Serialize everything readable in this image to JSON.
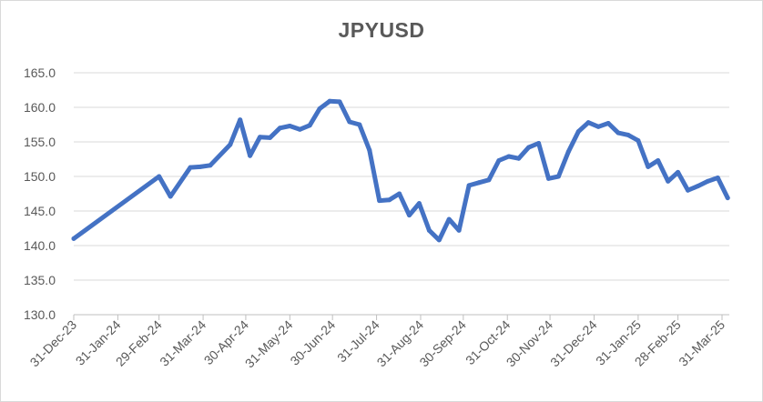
{
  "chart_data": {
    "type": "line",
    "title": "JPYUSD",
    "xlabel": "",
    "ylabel": "",
    "ylim": [
      130,
      165
    ],
    "y_ticks": [
      "165.0",
      "160.0",
      "155.0",
      "150.0",
      "145.0",
      "140.0",
      "135.0",
      "130.0"
    ],
    "x_ticks": [
      "31-Dec-23",
      "31-Jan-24",
      "29-Feb-24",
      "31-Mar-24",
      "30-Apr-24",
      "31-May-24",
      "30-Jun-24",
      "31-Jul-24",
      "31-Aug-24",
      "30-Sep-24",
      "31-Oct-24",
      "30-Nov-24",
      "31-Dec-24",
      "31-Jan-25",
      "28-Feb-25",
      "31-Mar-25"
    ],
    "grid": true,
    "legend": "none",
    "line_color": "#4472c4",
    "series": [
      {
        "x": [
          "2023-12-31",
          "2024-02-29",
          "2024-03-08",
          "2024-03-22",
          "2024-03-29",
          "2024-04-05",
          "2024-04-19",
          "2024-04-26",
          "2024-05-03",
          "2024-05-10",
          "2024-05-17",
          "2024-05-24",
          "2024-05-31",
          "2024-06-07",
          "2024-06-14",
          "2024-06-21",
          "2024-06-28",
          "2024-07-05",
          "2024-07-12",
          "2024-07-19",
          "2024-07-26",
          "2024-08-02",
          "2024-08-09",
          "2024-08-16",
          "2024-08-23",
          "2024-08-30",
          "2024-09-06",
          "2024-09-13",
          "2024-09-20",
          "2024-09-27",
          "2024-10-04",
          "2024-10-11",
          "2024-10-18",
          "2024-10-25",
          "2024-11-01",
          "2024-11-08",
          "2024-11-15",
          "2024-11-22",
          "2024-11-29",
          "2024-12-06",
          "2024-12-13",
          "2024-12-20",
          "2024-12-27",
          "2025-01-03",
          "2025-01-10",
          "2025-01-17",
          "2025-01-24",
          "2025-01-31",
          "2025-02-07",
          "2025-02-14",
          "2025-02-21",
          "2025-02-28",
          "2025-03-07",
          "2025-03-14",
          "2025-03-21",
          "2025-03-28",
          "2025-04-04"
        ],
        "values": [
          141.0,
          150.0,
          147.1,
          151.3,
          151.4,
          151.6,
          154.6,
          158.2,
          153.0,
          155.7,
          155.6,
          157.0,
          157.3,
          156.8,
          157.4,
          159.8,
          160.9,
          160.8,
          157.9,
          157.5,
          153.8,
          146.5,
          146.6,
          147.5,
          144.4,
          146.1,
          142.2,
          140.8,
          143.8,
          142.2,
          148.7,
          149.1,
          149.5,
          152.3,
          152.9,
          152.6,
          154.2,
          154.8,
          149.7,
          150.0,
          153.6,
          156.5,
          157.8,
          157.2,
          157.7,
          156.3,
          156.0,
          155.2,
          151.4,
          152.3,
          149.3,
          150.6,
          148.0,
          148.6,
          149.3,
          149.8,
          146.9
        ]
      }
    ]
  }
}
